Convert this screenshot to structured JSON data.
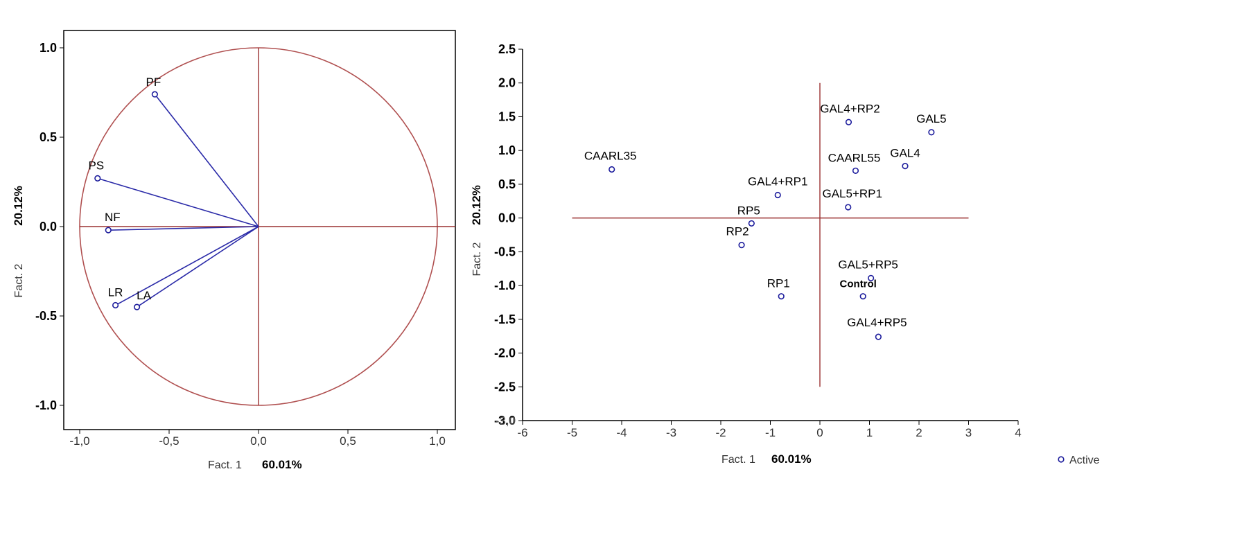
{
  "colors": {
    "frame": "#000000",
    "circle": "#b05050",
    "axis_line": "#9a3030",
    "loading_line": "#2a2aa8",
    "point": "#1c1c9c",
    "text": "#000000"
  },
  "chart_data": [
    {
      "type": "scatter",
      "subtype": "loadings-circle",
      "xlabel": "Fact. 1",
      "xlabel_pct": "60.01%",
      "ylabel": "Fact. 2",
      "ylabel_pct": "20.12%",
      "xlim": [
        -1.1,
        1.1
      ],
      "ylim": [
        -1.1,
        1.1
      ],
      "x_ticks": [
        -1.0,
        -0.5,
        0.0,
        0.5,
        1.0
      ],
      "x_tick_labels": [
        "-1,0",
        "-0,5",
        "0,0",
        "0,5",
        "1,0"
      ],
      "y_ticks": [
        1.0,
        0.5,
        0.0,
        -0.5,
        -1.0
      ],
      "y_tick_labels": [
        "1.0",
        "0.5",
        "0.0",
        "-0.5",
        "-1.0"
      ],
      "grid": false,
      "points": [
        {
          "label": "PF",
          "x": -0.58,
          "y": 0.74
        },
        {
          "label": "PS",
          "x": -0.9,
          "y": 0.27
        },
        {
          "label": "NF",
          "x": -0.84,
          "y": -0.02
        },
        {
          "label": "LR",
          "x": -0.8,
          "y": -0.44
        },
        {
          "label": "LA",
          "x": -0.68,
          "y": -0.45
        }
      ]
    },
    {
      "type": "scatter",
      "subtype": "scores",
      "xlabel": "Fact. 1",
      "xlabel_pct": "60.01%",
      "ylabel": "Fact. 2",
      "ylabel_pct": "20.12%",
      "xlim": [
        -6,
        4
      ],
      "ylim": [
        -3.0,
        2.5
      ],
      "x_ticks": [
        -6,
        -5,
        -4,
        -3,
        -2,
        -1,
        0,
        1,
        2,
        3,
        4
      ],
      "x_tick_labels": [
        "-6",
        "-5",
        "-4",
        "-3",
        "-2",
        "-1",
        "0",
        "1",
        "2",
        "3",
        "4"
      ],
      "y_ticks": [
        2.5,
        2.0,
        1.5,
        1.0,
        0.5,
        0.0,
        -0.5,
        -1.0,
        -1.5,
        -2.0,
        -2.5,
        -3.0
      ],
      "y_tick_labels": [
        "2.5",
        "2.0",
        "1.5",
        "1.0",
        "0.5",
        "0.0",
        "-0.5",
        "-1.0",
        "-1.5",
        "-2.0",
        "-2.5",
        "-3.0"
      ],
      "y_tick_overlap_label": "-3,0",
      "grid": false,
      "legend": {
        "position": "bottom-right",
        "entries": [
          "Active"
        ]
      },
      "points": [
        {
          "label": "CAARL35",
          "x": -4.2,
          "y": 0.72
        },
        {
          "label": "GAL4+RP2",
          "x": 0.58,
          "y": 1.42
        },
        {
          "label": "GAL5",
          "x": 2.25,
          "y": 1.27
        },
        {
          "label": "CAARL55",
          "x": 0.72,
          "y": 0.7
        },
        {
          "label": "GAL4",
          "x": 1.72,
          "y": 0.77
        },
        {
          "label": "GAL4+RP1",
          "x": -0.85,
          "y": 0.34
        },
        {
          "label": "GAL5+RP1",
          "x": 0.57,
          "y": 0.16
        },
        {
          "label": "RP5",
          "x": -1.38,
          "y": -0.08
        },
        {
          "label": "RP2",
          "x": -1.58,
          "y": -0.4
        },
        {
          "label": "GAL5+RP5",
          "x": 1.03,
          "y": -0.89
        },
        {
          "label": "Control",
          "x": 0.87,
          "y": -1.16
        },
        {
          "label": "RP1",
          "x": -0.78,
          "y": -1.16
        },
        {
          "label": "GAL4+RP5",
          "x": 1.18,
          "y": -1.76
        }
      ]
    }
  ]
}
